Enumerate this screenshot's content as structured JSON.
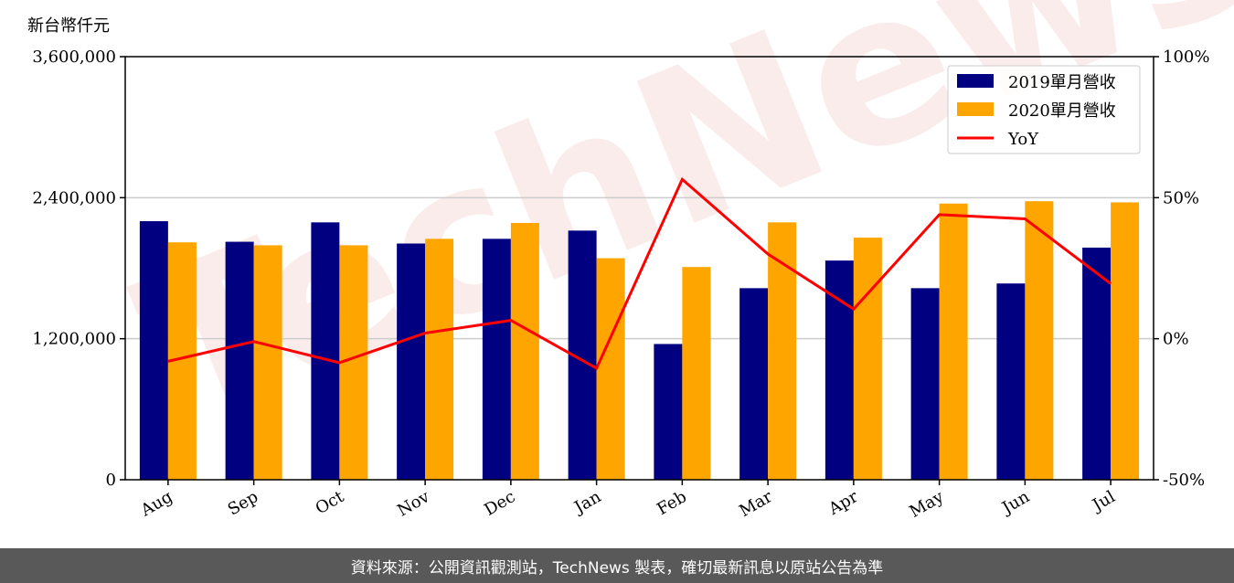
{
  "watermark": "TechNews",
  "unit_label": "新台幣仟元",
  "footer": "資料來源：公開資訊觀測站，TechNews 製表，確切最新訊息以原站公告為準",
  "chart_data": {
    "type": "bar",
    "categories": [
      "Aug",
      "Sep",
      "Oct",
      "Nov",
      "Dec",
      "Jan",
      "Feb",
      "Mar",
      "Apr",
      "May",
      "Jun",
      "Jul"
    ],
    "series": [
      {
        "name": "2019單月營收",
        "type": "bar",
        "axis": "left",
        "color": "#000080",
        "values": [
          2200000,
          2025000,
          2190000,
          2010000,
          2050000,
          2120000,
          1155000,
          1630000,
          1865000,
          1630000,
          1670000,
          1975000
        ]
      },
      {
        "name": "2020單月營收",
        "type": "bar",
        "axis": "left",
        "color": "#ffa500",
        "values": [
          2020000,
          1995000,
          1995000,
          2050000,
          2185000,
          1885000,
          1810000,
          2190000,
          2060000,
          2350000,
          2370000,
          2360000
        ]
      },
      {
        "name": "YoY",
        "type": "line",
        "axis": "right",
        "color": "#ff0000",
        "values": [
          -8,
          -1,
          -8.5,
          2,
          6.5,
          -10.5,
          56.5,
          30,
          10.5,
          44,
          42.5,
          19.5
        ]
      }
    ],
    "y_left": {
      "min": 0,
      "max": 3600000,
      "ticks": [
        0,
        1200000,
        2400000,
        3600000
      ],
      "tick_labels": [
        "0",
        "1,200,000",
        "2,400,000",
        "3,600,000"
      ]
    },
    "y_right": {
      "min": -50,
      "max": 100,
      "ticks": [
        -50,
        0,
        50,
        100
      ],
      "tick_labels": [
        "-50%",
        "0%",
        "50%",
        "100%"
      ]
    },
    "grid": "horizontal",
    "legend_position": "top-right"
  }
}
